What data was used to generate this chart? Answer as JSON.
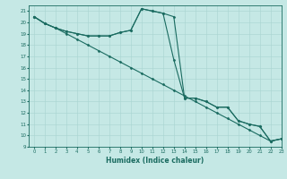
{
  "xlabel": "Humidex (Indice chaleur)",
  "xlim": [
    -0.5,
    23
  ],
  "ylim": [
    9,
    21.5
  ],
  "xticks": [
    0,
    1,
    2,
    3,
    4,
    5,
    6,
    7,
    8,
    9,
    10,
    11,
    12,
    13,
    14,
    15,
    16,
    17,
    18,
    19,
    20,
    21,
    22,
    23
  ],
  "yticks": [
    9,
    10,
    11,
    12,
    13,
    14,
    15,
    16,
    17,
    18,
    19,
    20,
    21
  ],
  "bg_color": "#c5e8e5",
  "grid_color": "#a8d4d0",
  "line_color": "#1a6b60",
  "line1_x": [
    0,
    1,
    2,
    3,
    4,
    5,
    6,
    7,
    8,
    9,
    10,
    11,
    12,
    13,
    14,
    15,
    16,
    17,
    18,
    19,
    20,
    21,
    22,
    23
  ],
  "line1_y": [
    20.5,
    19.9,
    19.5,
    19.2,
    19.0,
    18.8,
    18.8,
    18.8,
    19.1,
    19.3,
    21.2,
    21.0,
    20.8,
    20.5,
    13.3,
    13.3,
    13.0,
    12.5,
    12.5,
    11.3,
    11.0,
    10.8,
    9.5,
    9.7
  ],
  "line2_x": [
    0,
    1,
    2,
    3,
    4,
    5,
    6,
    7,
    8,
    9,
    10,
    11,
    12,
    13,
    14,
    15,
    16,
    17,
    18,
    19,
    20,
    21,
    22,
    23
  ],
  "line2_y": [
    20.5,
    19.9,
    19.5,
    19.0,
    18.5,
    18.0,
    17.5,
    17.0,
    16.5,
    16.0,
    15.5,
    15.0,
    14.5,
    14.0,
    13.5,
    13.0,
    12.5,
    12.0,
    11.5,
    11.0,
    10.5,
    10.0,
    9.5,
    9.7
  ],
  "line3_x": [
    0,
    1,
    2,
    3,
    4,
    5,
    6,
    7,
    8,
    9,
    10,
    11,
    12,
    13,
    14,
    15,
    16,
    17,
    18,
    19,
    20,
    21,
    22,
    23
  ],
  "line3_y": [
    20.5,
    19.9,
    19.5,
    19.2,
    19.0,
    18.8,
    18.8,
    18.8,
    19.1,
    19.3,
    21.2,
    21.0,
    20.8,
    16.7,
    13.3,
    13.3,
    13.0,
    12.5,
    12.5,
    11.3,
    11.0,
    10.8,
    9.5,
    9.7
  ]
}
